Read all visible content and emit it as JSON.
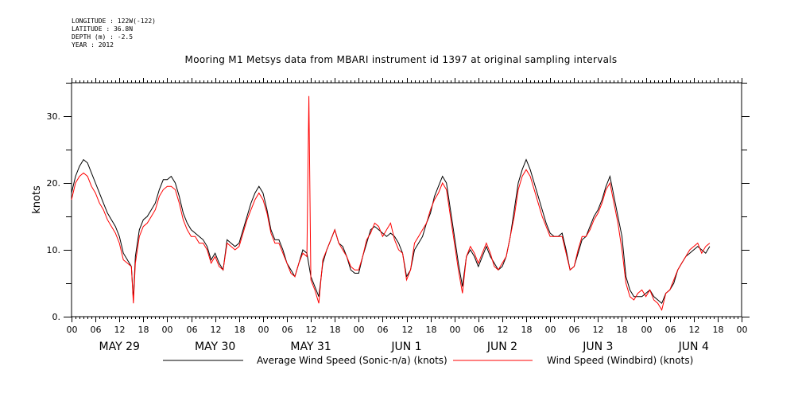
{
  "header": {
    "longitude": "LONGITUDE : 122W(-122)",
    "latitude": "LATITUDE : 36.8N",
    "depth": "DEPTH (m) : -2.5",
    "year": "YEAR : 2012"
  },
  "chart_data": {
    "type": "line",
    "title": "Mooring M1 Metsys data from MBARI instrument id 1397 at original sampling intervals",
    "ylabel": "knots",
    "xlabel": "",
    "xlim_hours": [
      0,
      168
    ],
    "ylim": [
      0,
      35
    ],
    "y_ticks": [
      0,
      10,
      20,
      30
    ],
    "y_tick_labels": [
      "0.",
      "10.",
      "20.",
      "30."
    ],
    "x_hour_ticks": [
      "00",
      "06",
      "12",
      "18",
      "00",
      "06",
      "12",
      "18",
      "00",
      "06",
      "12",
      "18",
      "00",
      "06",
      "12",
      "18",
      "00",
      "06",
      "12",
      "18",
      "00",
      "06",
      "12",
      "18",
      "00",
      "06",
      "12",
      "18",
      "00"
    ],
    "day_labels": [
      "MAY 29",
      "MAY 30",
      "MAY 31",
      "JUN  1",
      "JUN  2",
      "JUN  3",
      "JUN  4"
    ],
    "grid": false,
    "legend_position": "bottom",
    "series": [
      {
        "name": "Average Wind Speed (Sonic-n/a) (knots)",
        "color": "#000000",
        "points": [
          [
            0,
            18.5
          ],
          [
            1,
            21
          ],
          [
            2,
            22.5
          ],
          [
            3,
            23.5
          ],
          [
            4,
            23
          ],
          [
            5,
            21.5
          ],
          [
            6,
            20
          ],
          [
            7,
            18.5
          ],
          [
            8,
            17
          ],
          [
            9,
            15.5
          ],
          [
            10,
            14.5
          ],
          [
            11,
            13.5
          ],
          [
            12,
            12
          ],
          [
            13,
            9.5
          ],
          [
            14,
            8.5
          ],
          [
            15,
            7.5
          ],
          [
            15.5,
            2.5
          ],
          [
            16,
            9
          ],
          [
            17,
            13
          ],
          [
            18,
            14.5
          ],
          [
            19,
            15
          ],
          [
            20,
            16
          ],
          [
            21,
            17
          ],
          [
            22,
            19
          ],
          [
            23,
            20.5
          ],
          [
            24,
            20.5
          ],
          [
            25,
            21
          ],
          [
            26,
            20
          ],
          [
            27,
            18
          ],
          [
            28,
            15.5
          ],
          [
            29,
            14
          ],
          [
            30,
            13
          ],
          [
            31,
            12.5
          ],
          [
            32,
            12
          ],
          [
            33,
            11.5
          ],
          [
            34,
            10.5
          ],
          [
            35,
            8.5
          ],
          [
            36,
            9.5
          ],
          [
            37,
            8
          ],
          [
            38,
            7
          ],
          [
            39,
            11.5
          ],
          [
            40,
            11
          ],
          [
            41,
            10.5
          ],
          [
            42,
            11
          ],
          [
            43,
            13
          ],
          [
            44,
            15
          ],
          [
            45,
            17
          ],
          [
            46,
            18.5
          ],
          [
            47,
            19.5
          ],
          [
            48,
            18.5
          ],
          [
            49,
            16
          ],
          [
            50,
            13
          ],
          [
            51,
            11.5
          ],
          [
            52,
            11.5
          ],
          [
            53,
            10
          ],
          [
            54,
            8
          ],
          [
            55,
            7
          ],
          [
            56,
            6
          ],
          [
            57,
            8
          ],
          [
            58,
            10
          ],
          [
            59,
            9.5
          ],
          [
            60,
            6
          ],
          [
            61,
            4.5
          ],
          [
            62,
            3
          ],
          [
            63,
            8
          ],
          [
            64,
            10
          ],
          [
            65,
            11.5
          ],
          [
            66,
            13
          ],
          [
            67,
            11
          ],
          [
            68,
            10.5
          ],
          [
            69,
            9
          ],
          [
            70,
            7
          ],
          [
            71,
            6.5
          ],
          [
            72,
            6.5
          ],
          [
            73,
            9
          ],
          [
            74,
            11
          ],
          [
            75,
            13
          ],
          [
            76,
            13.5
          ],
          [
            77,
            13
          ],
          [
            78,
            12.5
          ],
          [
            79,
            12
          ],
          [
            80,
            12.5
          ],
          [
            81,
            12
          ],
          [
            82,
            11
          ],
          [
            83,
            9.5
          ],
          [
            84,
            6
          ],
          [
            85,
            7
          ],
          [
            86,
            10
          ],
          [
            87,
            11
          ],
          [
            88,
            12
          ],
          [
            89,
            14
          ],
          [
            90,
            15.5
          ],
          [
            91,
            18
          ],
          [
            92,
            19.5
          ],
          [
            93,
            21
          ],
          [
            94,
            20
          ],
          [
            95,
            16
          ],
          [
            96,
            12
          ],
          [
            97,
            8
          ],
          [
            98,
            4.5
          ],
          [
            99,
            9
          ],
          [
            100,
            10
          ],
          [
            101,
            9
          ],
          [
            102,
            7.5
          ],
          [
            103,
            9
          ],
          [
            104,
            10.5
          ],
          [
            105,
            9
          ],
          [
            106,
            8
          ],
          [
            107,
            7
          ],
          [
            108,
            7.5
          ],
          [
            109,
            9
          ],
          [
            110,
            12
          ],
          [
            111,
            16
          ],
          [
            112,
            20
          ],
          [
            113,
            22
          ],
          [
            114,
            23.5
          ],
          [
            115,
            22
          ],
          [
            116,
            20
          ],
          [
            117,
            18
          ],
          [
            118,
            16
          ],
          [
            119,
            14
          ],
          [
            120,
            12.5
          ],
          [
            121,
            12
          ],
          [
            122,
            12
          ],
          [
            123,
            12.5
          ],
          [
            124,
            10
          ],
          [
            125,
            7
          ],
          [
            126,
            7.5
          ],
          [
            127,
            9.5
          ],
          [
            128,
            11.5
          ],
          [
            129,
            12
          ],
          [
            130,
            13.5
          ],
          [
            131,
            15
          ],
          [
            132,
            16
          ],
          [
            133,
            17.5
          ],
          [
            134,
            19.5
          ],
          [
            135,
            21
          ],
          [
            136,
            18
          ],
          [
            137,
            15
          ],
          [
            138,
            12
          ],
          [
            139,
            6
          ],
          [
            140,
            4
          ],
          [
            141,
            3
          ],
          [
            142,
            3
          ],
          [
            143,
            3
          ],
          [
            144,
            3.5
          ],
          [
            145,
            4
          ],
          [
            146,
            3
          ],
          [
            147,
            2.5
          ],
          [
            148,
            2
          ],
          [
            149,
            3.5
          ],
          [
            150,
            4
          ],
          [
            151,
            5
          ],
          [
            152,
            7
          ],
          [
            153,
            8
          ],
          [
            154,
            9
          ],
          [
            155,
            9.5
          ],
          [
            156,
            10
          ],
          [
            157,
            10.5
          ],
          [
            158,
            10
          ],
          [
            159,
            9.5
          ],
          [
            160,
            10.5
          ]
        ]
      },
      {
        "name": "Wind Speed (Windbird) (knots)",
        "color": "#ff0000",
        "points": [
          [
            0,
            17.5
          ],
          [
            1,
            20
          ],
          [
            2,
            21
          ],
          [
            3,
            21.5
          ],
          [
            4,
            21
          ],
          [
            5,
            19.5
          ],
          [
            6,
            18.5
          ],
          [
            7,
            17
          ],
          [
            8,
            16
          ],
          [
            9,
            14.5
          ],
          [
            10,
            13.5
          ],
          [
            11,
            12.5
          ],
          [
            12,
            11
          ],
          [
            13,
            8.5
          ],
          [
            14,
            8
          ],
          [
            15,
            7.5
          ],
          [
            15.5,
            2
          ],
          [
            16,
            8
          ],
          [
            17,
            12
          ],
          [
            18,
            13.5
          ],
          [
            19,
            14
          ],
          [
            20,
            15
          ],
          [
            21,
            16
          ],
          [
            22,
            18
          ],
          [
            23,
            19
          ],
          [
            24,
            19.5
          ],
          [
            25,
            19.5
          ],
          [
            26,
            19
          ],
          [
            27,
            17
          ],
          [
            28,
            14.5
          ],
          [
            29,
            13
          ],
          [
            30,
            12
          ],
          [
            31,
            12
          ],
          [
            32,
            11
          ],
          [
            33,
            11
          ],
          [
            34,
            10
          ],
          [
            35,
            8
          ],
          [
            36,
            9
          ],
          [
            37,
            7.5
          ],
          [
            38,
            7
          ],
          [
            39,
            11
          ],
          [
            40,
            10.5
          ],
          [
            41,
            10
          ],
          [
            42,
            10.5
          ],
          [
            43,
            12.5
          ],
          [
            44,
            14.5
          ],
          [
            45,
            16
          ],
          [
            46,
            17.5
          ],
          [
            47,
            18.5
          ],
          [
            48,
            17.5
          ],
          [
            49,
            15.5
          ],
          [
            50,
            12.5
          ],
          [
            51,
            11
          ],
          [
            52,
            11
          ],
          [
            53,
            9.5
          ],
          [
            54,
            8
          ],
          [
            55,
            6.5
          ],
          [
            56,
            6
          ],
          [
            57,
            8
          ],
          [
            58,
            9.5
          ],
          [
            59,
            9
          ],
          [
            59.5,
            33
          ],
          [
            60,
            5.5
          ],
          [
            61,
            4
          ],
          [
            62,
            2
          ],
          [
            63,
            8.5
          ],
          [
            64,
            10
          ],
          [
            65,
            11.5
          ],
          [
            66,
            13
          ],
          [
            67,
            11
          ],
          [
            68,
            10
          ],
          [
            69,
            9
          ],
          [
            70,
            7.5
          ],
          [
            71,
            7
          ],
          [
            72,
            7
          ],
          [
            73,
            9
          ],
          [
            74,
            11.5
          ],
          [
            75,
            12.5
          ],
          [
            76,
            14
          ],
          [
            77,
            13.5
          ],
          [
            78,
            12
          ],
          [
            79,
            13
          ],
          [
            80,
            14
          ],
          [
            81,
            11.5
          ],
          [
            82,
            10
          ],
          [
            83,
            9.5
          ],
          [
            84,
            5.5
          ],
          [
            85,
            7
          ],
          [
            86,
            11
          ],
          [
            87,
            12
          ],
          [
            88,
            13
          ],
          [
            89,
            14
          ],
          [
            90,
            16
          ],
          [
            91,
            17.5
          ],
          [
            92,
            18.5
          ],
          [
            93,
            20
          ],
          [
            94,
            19
          ],
          [
            95,
            15
          ],
          [
            96,
            11
          ],
          [
            97,
            7
          ],
          [
            98,
            3.5
          ],
          [
            99,
            9
          ],
          [
            100,
            10.5
          ],
          [
            101,
            9.5
          ],
          [
            102,
            8
          ],
          [
            103,
            9.5
          ],
          [
            104,
            11
          ],
          [
            105,
            9.5
          ],
          [
            106,
            7.5
          ],
          [
            107,
            7
          ],
          [
            108,
            8
          ],
          [
            109,
            9
          ],
          [
            110,
            12
          ],
          [
            111,
            15
          ],
          [
            112,
            19
          ],
          [
            113,
            21
          ],
          [
            114,
            22
          ],
          [
            115,
            21
          ],
          [
            116,
            19
          ],
          [
            117,
            17
          ],
          [
            118,
            15
          ],
          [
            119,
            13.5
          ],
          [
            120,
            12
          ],
          [
            121,
            12
          ],
          [
            122,
            12
          ],
          [
            123,
            12
          ],
          [
            124,
            9.5
          ],
          [
            125,
            7
          ],
          [
            126,
            7.5
          ],
          [
            127,
            10
          ],
          [
            128,
            12
          ],
          [
            129,
            12
          ],
          [
            130,
            13
          ],
          [
            131,
            14.5
          ],
          [
            132,
            15.5
          ],
          [
            133,
            17
          ],
          [
            134,
            19
          ],
          [
            135,
            20
          ],
          [
            136,
            17
          ],
          [
            137,
            14
          ],
          [
            138,
            10
          ],
          [
            139,
            5
          ],
          [
            140,
            3
          ],
          [
            141,
            2.5
          ],
          [
            142,
            3.5
          ],
          [
            143,
            4
          ],
          [
            144,
            3
          ],
          [
            145,
            4
          ],
          [
            146,
            2.5
          ],
          [
            147,
            2
          ],
          [
            148,
            1
          ],
          [
            149,
            3.5
          ],
          [
            150,
            4
          ],
          [
            151,
            5.5
          ],
          [
            152,
            7
          ],
          [
            153,
            8
          ],
          [
            154,
            9
          ],
          [
            155,
            10
          ],
          [
            156,
            10.5
          ],
          [
            157,
            11
          ],
          [
            158,
            9.5
          ],
          [
            159,
            10.5
          ],
          [
            160,
            11
          ]
        ]
      }
    ]
  }
}
